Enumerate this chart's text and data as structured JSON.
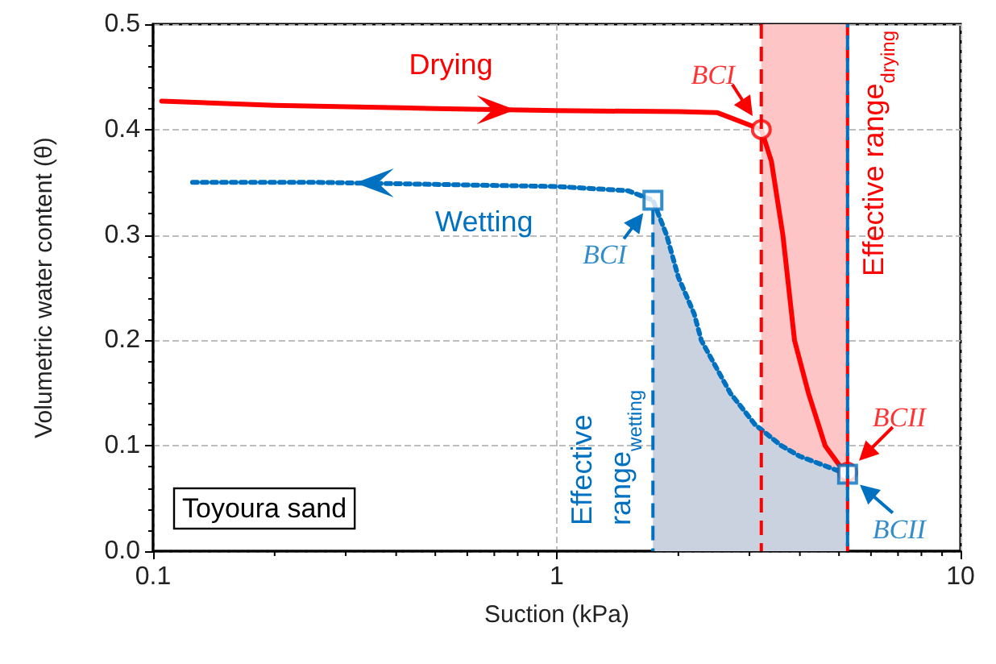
{
  "chart_data": {
    "type": "line",
    "xlabel": "Suction (kPa)",
    "ylabel": "Volumetric water content (θ)",
    "log": "x",
    "xlim": [
      0.1,
      10
    ],
    "xticks": [
      0.1,
      1,
      10
    ],
    "ylim": [
      0,
      0.5
    ],
    "yticks": [
      {
        "value": 0,
        "label": "0.0"
      },
      0.1,
      0.2,
      0.3,
      0.4,
      0.5
    ],
    "grid": true,
    "series": [
      {
        "type": "area",
        "color": "#cbd2df",
        "marker": "none",
        "x": [
          1.73,
          1.87,
          2.0,
          2.19,
          2.28,
          2.69,
          3.1,
          3.6,
          4.0,
          4.69,
          5.25
        ],
        "values": [
          0.333,
          0.3,
          0.26,
          0.225,
          0.2,
          0.15,
          0.12,
          0.1,
          0.09,
          0.08,
          0.073
        ]
      },
      {
        "name": "Drying",
        "color": "#ff0000",
        "line_style": "solid",
        "marker": "none",
        "x": [
          0.105,
          0.2,
          0.5,
          1,
          2,
          2.5,
          3.21,
          3.4,
          3.63,
          3.88,
          4.2,
          4.62,
          5.0,
          5.25
        ],
        "values": [
          0.427,
          0.423,
          0.42,
          0.418,
          0.417,
          0.416,
          0.4,
          0.37,
          0.3,
          0.2,
          0.15,
          0.1,
          0.082,
          0.075
        ]
      },
      {
        "name": "Wetting",
        "color": "#0070c0",
        "line_style": "dotted",
        "marker": "none",
        "x": [
          5.25,
          4.69,
          4.0,
          3.6,
          3.1,
          2.69,
          2.28,
          2.19,
          2.0,
          1.87,
          1.73,
          1.5,
          1,
          0.5,
          0.25,
          0.125
        ],
        "values": [
          0.073,
          0.08,
          0.09,
          0.1,
          0.12,
          0.15,
          0.2,
          0.225,
          0.26,
          0.3,
          0.333,
          0.342,
          0.346,
          0.348,
          0.35,
          0.35
        ]
      },
      {
        "type": "scatter",
        "color": "#ff0000",
        "marker": "circle",
        "x": [
          3.21,
          5.25
        ],
        "values": [
          0.4,
          0.075
        ],
        "value_labels": [
          "BCI",
          "BCII"
        ]
      },
      {
        "type": "scatter",
        "color": "#0070c0",
        "marker": "square",
        "x": [
          1.73,
          5.25
        ],
        "values": [
          0.333,
          0.073
        ],
        "value_labels": [
          "BCI",
          "BCII"
        ]
      }
    ],
    "bands": [
      {
        "axis": "x",
        "from": 3.21,
        "to": 5.25,
        "color": "#fdc5c5"
      }
    ],
    "ref_lines": [
      {
        "axis": "x",
        "value": 3.21,
        "color": "#ff0000",
        "line_style": "dashed"
      },
      {
        "axis": "x",
        "value": 5.25,
        "label": "Effective range$_{drying}$",
        "color": "#ff0000",
        "line_style": "dashed"
      },
      {
        "axis": "x",
        "value": 1.73,
        "label": "Effective range$_{wetting}$",
        "color": "#0070c0",
        "line_style": "dashed"
      },
      {
        "axis": "x",
        "value": 5.25,
        "color": "#0070c0",
        "line_style": "dashed"
      }
    ],
    "annotations": [
      "Toyoura sand"
    ]
  }
}
